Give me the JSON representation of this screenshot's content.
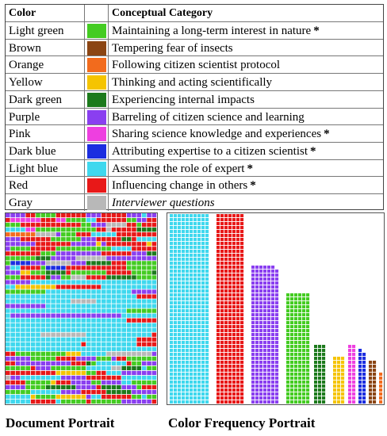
{
  "legend": {
    "header": {
      "color": "Color",
      "category": "Conceptual Category"
    },
    "rows": [
      {
        "color": "Light green",
        "hex": "#44cc22",
        "category": "Maintaining a long-term interest in nature",
        "star": "*",
        "italic": false
      },
      {
        "color": "Brown",
        "hex": "#8b4513",
        "category": "Tempering fear of insects",
        "star": "",
        "italic": false
      },
      {
        "color": "Orange",
        "hex": "#f26b1d",
        "category": "Following citizen scientist protocol",
        "star": "",
        "italic": false
      },
      {
        "color": "Yellow",
        "hex": "#f5c400",
        "category": "Thinking and acting scientifically",
        "star": "",
        "italic": false
      },
      {
        "color": "Dark green",
        "hex": "#1c7a1c",
        "category": "Experiencing internal impacts",
        "star": "",
        "italic": false
      },
      {
        "color": "Purple",
        "hex": "#8a3ff0",
        "category": "Barreling of citizen science and learning",
        "star": "",
        "italic": false
      },
      {
        "color": "Pink",
        "hex": "#ee3fe0",
        "category": "Sharing science knowledge and experiences",
        "star": "*",
        "italic": false
      },
      {
        "color": "Dark blue",
        "hex": "#1b2de0",
        "category": "Attributing expertise to a citizen scientist",
        "star": "*",
        "italic": false
      },
      {
        "color": "Light blue",
        "hex": "#3fd8ee",
        "category": "Assuming the role of expert",
        "star": "*",
        "italic": false
      },
      {
        "color": "Red",
        "hex": "#e81818",
        "category": "Influencing change in others",
        "star": "*",
        "italic": false
      },
      {
        "color": "Gray",
        "hex": "#b8b8b8",
        "category": "Interviewer questions",
        "star": "",
        "italic": true
      }
    ]
  },
  "document_portrait": {
    "caption": "Document Portrait"
  },
  "color_frequency_portrait": {
    "caption": "Color Frequency Portrait",
    "columns": [
      {
        "color": "Light blue",
        "hex": "#3fd8ee",
        "count": 552
      },
      {
        "color": "Red",
        "hex": "#e81818",
        "count": 340
      },
      {
        "color": "Purple",
        "hex": "#8a3ff0",
        "count": 244
      },
      {
        "color": "Light green",
        "hex": "#44cc22",
        "count": 168
      },
      {
        "color": "Dark green",
        "hex": "#1c7a1c",
        "count": 45
      },
      {
        "color": "Yellow",
        "hex": "#f5c400",
        "count": 36
      },
      {
        "color": "Pink",
        "hex": "#ee3fe0",
        "count": 30
      },
      {
        "color": "Dark blue",
        "hex": "#1b2de0",
        "count": 27
      },
      {
        "color": "Brown",
        "hex": "#8b4513",
        "count": 22
      },
      {
        "color": "Orange",
        "hex": "#f26b1d",
        "count": 8
      }
    ]
  }
}
